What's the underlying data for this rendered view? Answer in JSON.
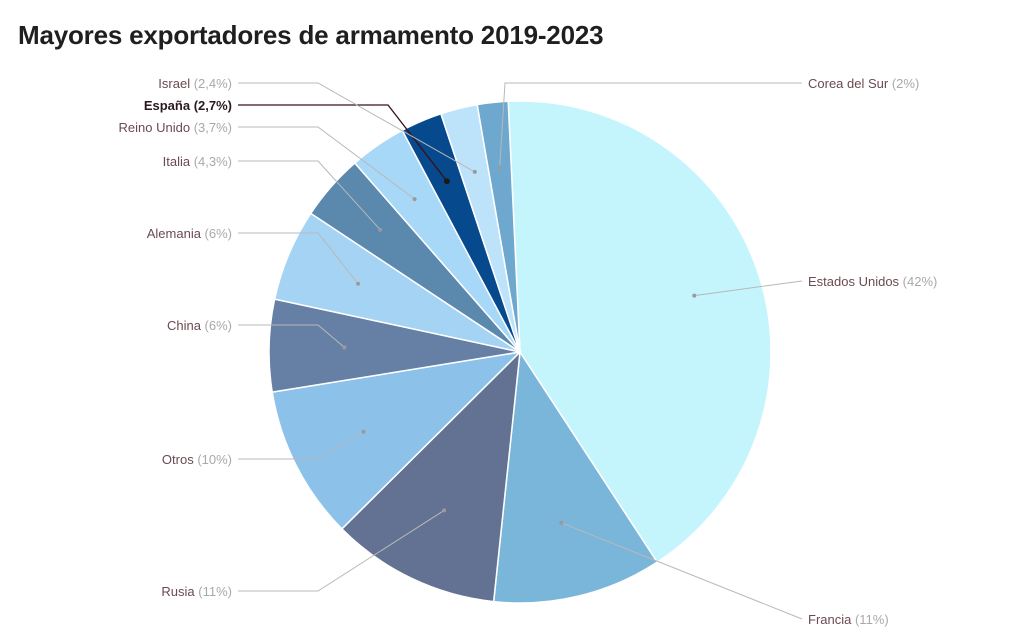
{
  "chart_data": {
    "type": "pie",
    "title": "Mayores exportadores de armamento 2019-2023",
    "slices": [
      {
        "name": "Estados Unidos",
        "value": 42,
        "label": "Estados Unidos",
        "pct_text": "(42%)",
        "color": "#c4f4fc",
        "side": "right",
        "highlight": false
      },
      {
        "name": "Francia",
        "value": 11,
        "label": "Francia",
        "pct_text": "(11%)",
        "color": "#7ab6da",
        "side": "right",
        "highlight": false
      },
      {
        "name": "Rusia",
        "value": 11,
        "label": "Rusia",
        "pct_text": "(11%)",
        "color": "#637192",
        "side": "left",
        "highlight": false
      },
      {
        "name": "Otros",
        "value": 10,
        "label": "Otros",
        "pct_text": "(10%)",
        "color": "#8cc2ea",
        "side": "left",
        "highlight": false
      },
      {
        "name": "China",
        "value": 6,
        "label": "China",
        "pct_text": "(6%)",
        "color": "#6680a5",
        "side": "left",
        "highlight": false
      },
      {
        "name": "Alemania",
        "value": 6,
        "label": "Alemania",
        "pct_text": "(6%)",
        "color": "#a5d3f3",
        "side": "left",
        "highlight": false
      },
      {
        "name": "Italia",
        "value": 4.3,
        "label": "Italia",
        "pct_text": "(4,3%)",
        "color": "#5b88ad",
        "side": "left",
        "highlight": false
      },
      {
        "name": "Reino Unido",
        "value": 3.7,
        "label": "Reino Unido",
        "pct_text": "(3,7%)",
        "color": "#a8d8f7",
        "side": "left",
        "highlight": false
      },
      {
        "name": "España",
        "value": 2.7,
        "label": "España",
        "pct_text": "(2,7%)",
        "color": "#064a8d",
        "side": "left",
        "highlight": true
      },
      {
        "name": "Israel",
        "value": 2.4,
        "label": "Israel",
        "pct_text": "(2,4%)",
        "color": "#bde3fb",
        "side": "left",
        "highlight": false
      },
      {
        "name": "Corea del Sur",
        "value": 2,
        "label": "Corea del Sur",
        "pct_text": "(2%)",
        "color": "#6fa8cf",
        "side": "right",
        "highlight": false
      }
    ]
  }
}
